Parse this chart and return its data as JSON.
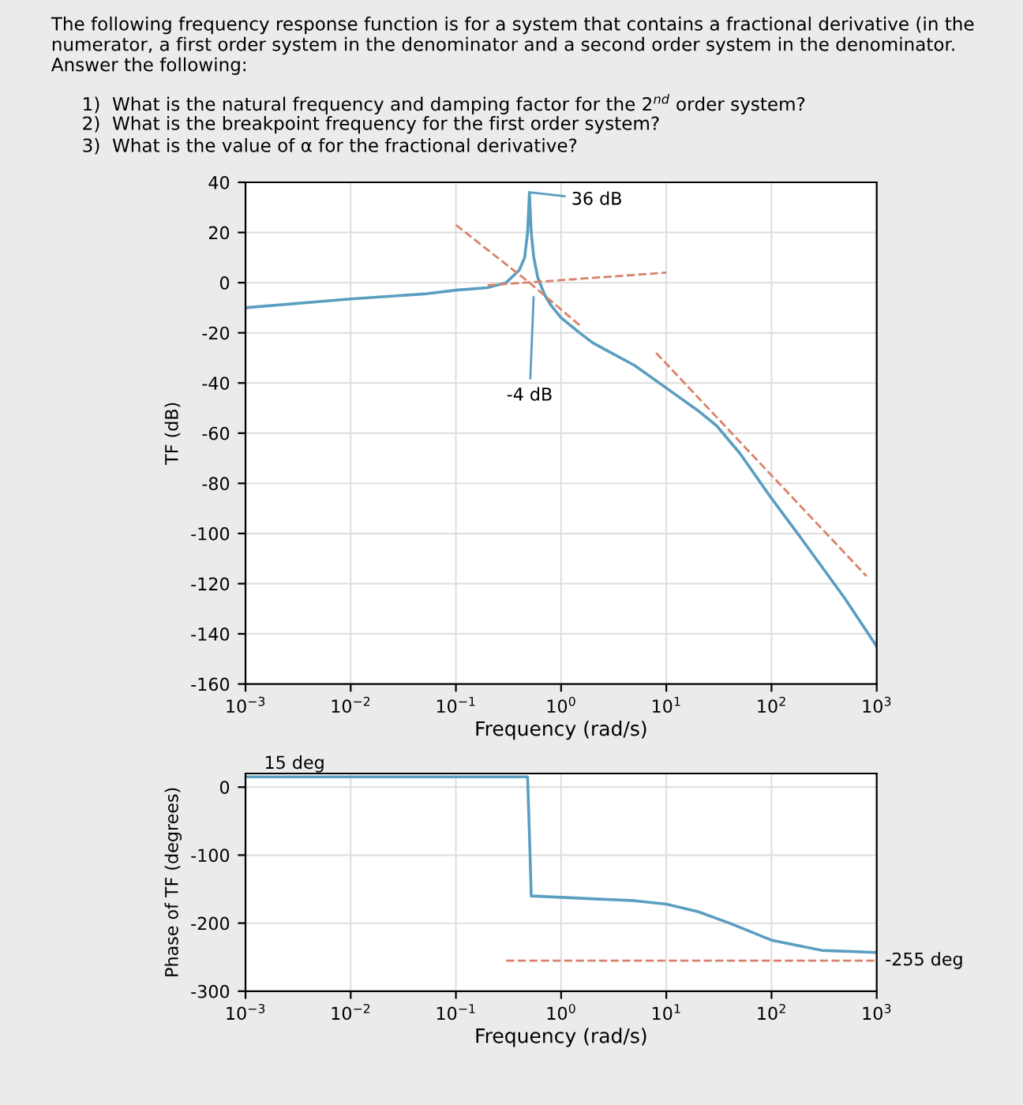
{
  "chart_data": [
    {
      "type": "line",
      "title": "The following frequency response function is for a system that contains a fractional derivative (in the numerator, a first order system in the denominator and a second order system in the denominator. Answer the following:",
      "annotations": [
        "1)  What is the natural frequency and damping factor for the 2$^{nd}$ order system?",
        "2)  What is the breakpoint frequency for the first order system?",
        "3)  What is the value of α for the fractional derivative?",
        {
          "text": "36 dB",
          "x": 0.5,
          "y": 36
        },
        {
          "text": "-4 dB",
          "x": 0.55,
          "y": -4
        }
      ],
      "xlabel": "Frequency (rad/s)",
      "ylabel": "TF (dB)",
      "log": "x",
      "xlim": [
        0.001,
        1000
      ],
      "xticks": [
        {
          "value": 0.001,
          "label": "10$^{−3}$"
        },
        {
          "value": 0.01,
          "label": "10$^{−2}$"
        },
        {
          "value": 0.1,
          "label": "10$^{−1}$"
        },
        {
          "value": 1,
          "label": "10$^{0}$"
        },
        {
          "value": 10,
          "label": "10$^{1}$"
        },
        {
          "value": 100,
          "label": "10$^{2}$"
        },
        {
          "value": 1000,
          "label": "10$^{3}$"
        }
      ],
      "ylim": [
        -160,
        40
      ],
      "yticks": [
        -160,
        -140,
        -120,
        -100,
        -80,
        -60,
        -40,
        -20,
        0,
        20,
        40
      ],
      "grid": true,
      "series": [
        {
          "color": "#5a9ec0",
          "line_style": "solid",
          "x": [
            0.001,
            0.01,
            0.05,
            0.1,
            0.2,
            0.3,
            0.4,
            0.45,
            0.48,
            0.5,
            0.52,
            0.55,
            0.6,
            0.7,
            0.8,
            1,
            1.5,
            2,
            5,
            10,
            20,
            30,
            50,
            100,
            200,
            500,
            1000
          ],
          "values": [
            -10,
            -6.5,
            -4.5,
            -3,
            -2,
            0,
            5,
            10,
            20,
            36,
            20,
            10,
            2,
            -5,
            -9,
            -14,
            -20,
            -24,
            -33,
            -42,
            -51,
            -57,
            -68,
            -86,
            -103,
            -126,
            -145
          ]
        },
        {
          "color": "#d9826b",
          "line_style": "dashed",
          "x": [
            0.1,
            0.5,
            1.5
          ],
          "values": [
            23,
            0,
            -17
          ]
        },
        {
          "color": "#d9826b",
          "line_style": "dashed",
          "x": [
            0.2,
            1,
            10
          ],
          "values": [
            -1,
            1,
            4
          ]
        },
        {
          "color": "#d9826b",
          "line_style": "dashed",
          "x": [
            8,
            800
          ],
          "values": [
            -28,
            -117
          ]
        }
      ]
    },
    {
      "type": "line",
      "xlabel": "Frequency (rad/s)",
      "ylabel": "Phase of TF (degrees)",
      "log": "x",
      "annotations": [
        {
          "text": "15 deg",
          "x": 0.001,
          "y": 15
        },
        {
          "text": "-255 deg",
          "x": 1000,
          "y": -255
        }
      ],
      "xlim": [
        0.001,
        1000
      ],
      "xticks": [
        {
          "value": 0.001,
          "label": "10$^{−3}$"
        },
        {
          "value": 0.01,
          "label": "10$^{−2}$"
        },
        {
          "value": 0.1,
          "label": "10$^{−1}$"
        },
        {
          "value": 1,
          "label": "10$^{0}$"
        },
        {
          "value": 10,
          "label": "10$^{1}$"
        },
        {
          "value": 100,
          "label": "10$^{2}$"
        },
        {
          "value": 1000,
          "label": "10$^{3}$"
        }
      ],
      "ylim": [
        -300,
        20
      ],
      "yticks": [
        -300,
        -200,
        -100,
        0
      ],
      "grid": true,
      "series": [
        {
          "color": "#5a9ec0",
          "line_style": "solid",
          "x": [
            0.001,
            0.1,
            0.48,
            0.5,
            0.52,
            1,
            5,
            10,
            20,
            40,
            100,
            300,
            1000
          ],
          "values": [
            15,
            15,
            15,
            -70,
            -160,
            -162,
            -167,
            -172,
            -183,
            -200,
            -225,
            -240,
            -243
          ]
        },
        {
          "color": "#d9826b",
          "line_style": "dashed",
          "x": [
            0.3,
            1000
          ],
          "values": [
            -255,
            -255
          ]
        }
      ]
    }
  ]
}
